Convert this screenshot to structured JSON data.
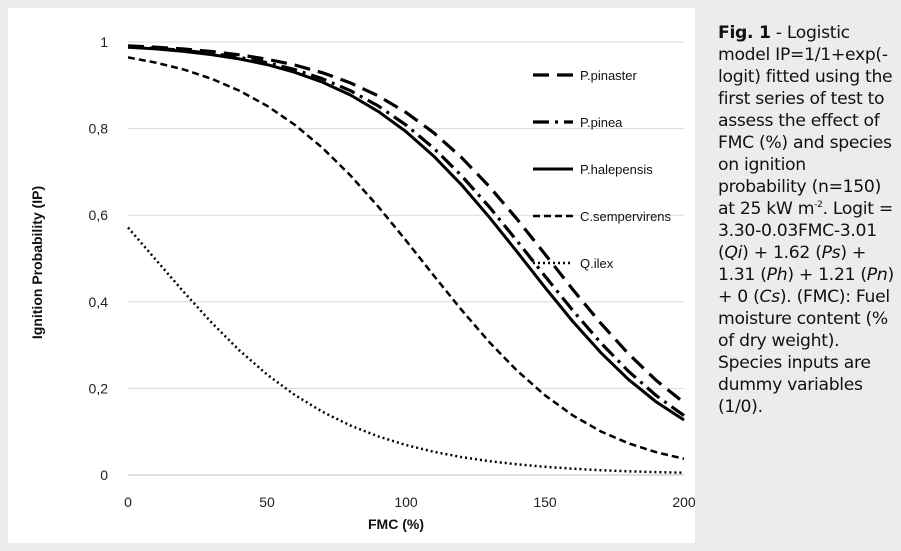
{
  "chart_data": {
    "type": "line",
    "xlabel": "FMC (%)",
    "ylabel": "Ignition Probability (IP)",
    "xlim": [
      0,
      200
    ],
    "ylim": [
      0,
      1
    ],
    "x_ticks": [
      "0",
      "50",
      "100",
      "150",
      "200"
    ],
    "y_ticks": [
      "0",
      "0,2",
      "0,4",
      "0,6",
      "0,8",
      "1"
    ],
    "grid": "horizontal",
    "legend_position": "right",
    "x": [
      0,
      10,
      20,
      30,
      40,
      50,
      60,
      70,
      80,
      90,
      100,
      110,
      120,
      130,
      140,
      150,
      160,
      170,
      180,
      190,
      200
    ],
    "series": [
      {
        "name": "P.pinaster",
        "style": "long-dash",
        "color": "#000000",
        "values": [
          0.9911,
          0.988,
          0.9838,
          0.9781,
          0.9705,
          0.9603,
          0.9468,
          0.9289,
          0.9055,
          0.8755,
          0.8375,
          0.7902,
          0.733,
          0.666,
          0.5906,
          0.51,
          0.4285,
          0.3507,
          0.2801,
          0.2185,
          0.1671
        ]
      },
      {
        "name": "P.pinea",
        "style": "dash-dot",
        "color": "#000000",
        "values": [
          0.9893,
          0.9855,
          0.9805,
          0.9737,
          0.9646,
          0.9524,
          0.9363,
          0.9151,
          0.8876,
          0.8524,
          0.8084,
          0.7547,
          0.6911,
          0.6189,
          0.5403,
          0.4594,
          0.3799,
          0.3058,
          0.2398,
          0.1834,
          0.1371
        ]
      },
      {
        "name": "P.halepensis",
        "style": "solid",
        "color": "#000000",
        "values": [
          0.9881,
          0.984,
          0.9784,
          0.971,
          0.961,
          0.9477,
          0.9301,
          0.9072,
          0.8775,
          0.8398,
          0.793,
          0.7363,
          0.67,
          0.5951,
          0.5149,
          0.4333,
          0.3546,
          0.2832,
          0.2209,
          0.1689,
          0.1271
        ]
      },
      {
        "name": "C.sempervirens",
        "style": "short-dash",
        "color": "#000000",
        "values": [
          0.9644,
          0.9524,
          0.9364,
          0.9153,
          0.8878,
          0.8527,
          0.8088,
          0.7553,
          0.6919,
          0.6198,
          0.5415,
          0.4605,
          0.381,
          0.3068,
          0.2407,
          0.1841,
          0.1377,
          0.101,
          0.0732,
          0.0526,
          0.0374
        ]
      },
      {
        "name": "Q.ilex",
        "style": "dotted",
        "color": "#000000",
        "values": [
          0.5717,
          0.4972,
          0.4231,
          0.3525,
          0.2883,
          0.2322,
          0.1848,
          0.1458,
          0.1143,
          0.0891,
          0.0692,
          0.0536,
          0.0414,
          0.0319,
          0.0246,
          0.0189,
          0.0146,
          0.0112,
          0.0086,
          0.0066,
          0.0051
        ]
      }
    ]
  },
  "caption": {
    "fig_label": "Fig. 1",
    "text_1": " - Logistic model IP=1/1+exp(-logit) fitted using the first series of test to assess the effect of FMC (%) and species on ignition probability (n=150) at 25 kW m",
    "sup_1": "-2",
    "text_2": ". Logit = 3.30-0.03FMC-3.01 (",
    "qi": "Qi",
    "text_3": ") + 1.62 (",
    "ps": "Ps",
    "text_4": ") + 1.31 (",
    "ph": "Ph",
    "text_5": ") + 1.21 (",
    "pn": "Pn",
    "text_6": ") + 0 (",
    "cs": "Cs",
    "text_7": "). (FMC): Fuel moisture content (% of dry weight). Species inputs are dummy variables (1/0)."
  }
}
